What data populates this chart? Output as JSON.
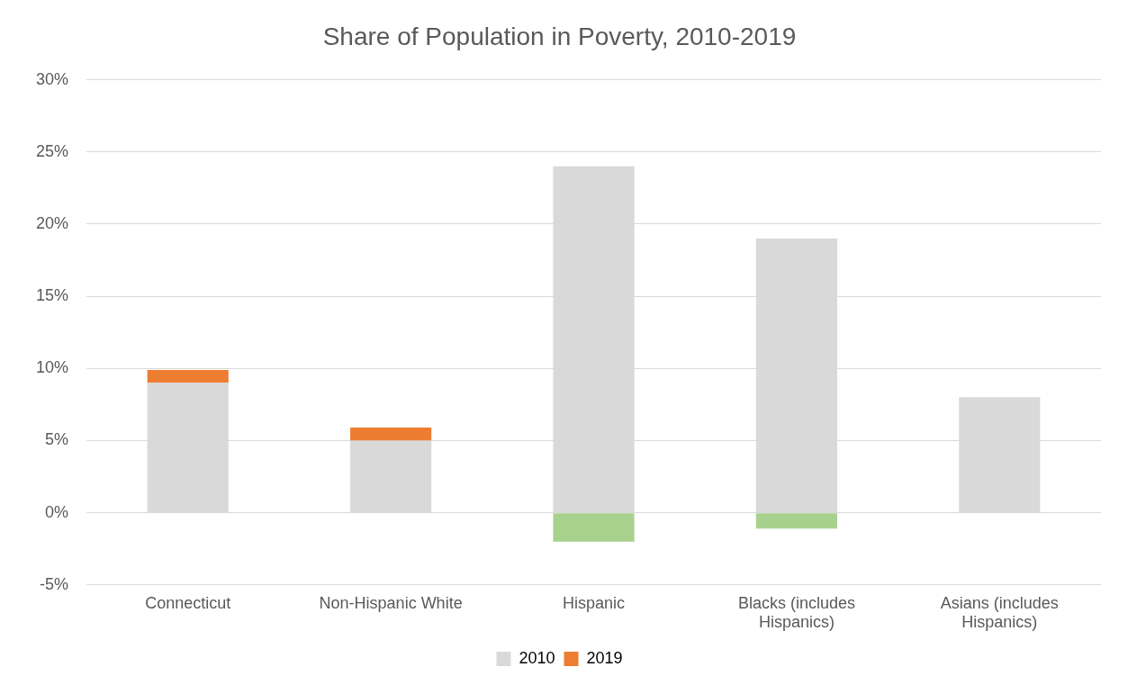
{
  "chart_data": {
    "type": "bar",
    "title": "Share of Population in Poverty, 2010-2019",
    "stacked": true,
    "categories": [
      "Connecticut",
      "Non-Hispanic White",
      "Hispanic",
      "Blacks (includes Hispanics)",
      "Asians (includes Hispanics)"
    ],
    "series": [
      {
        "name": "2010",
        "color": "#d9d9d9",
        "values": [
          9,
          5,
          24,
          19,
          8
        ]
      },
      {
        "name": "2019",
        "color": "#ed7d31",
        "colors": [
          "#ed7d31",
          "#ed7d31",
          "#a9d18e",
          "#a9d18e",
          "#ed7d31"
        ],
        "values": [
          0.9,
          0.9,
          -2,
          -1.1,
          0
        ]
      }
    ],
    "ylim": [
      -5,
      30
    ],
    "yticks": [
      {
        "value": -5,
        "label": "-5%"
      },
      {
        "value": 0,
        "label": "0%"
      },
      {
        "value": 5,
        "label": "5%"
      },
      {
        "value": 10,
        "label": "10%"
      },
      {
        "value": 15,
        "label": "15%"
      },
      {
        "value": 20,
        "label": "20%"
      },
      {
        "value": 25,
        "label": "25%"
      },
      {
        "value": 30,
        "label": "30%"
      }
    ],
    "grid": "y",
    "legend": "bottom"
  }
}
